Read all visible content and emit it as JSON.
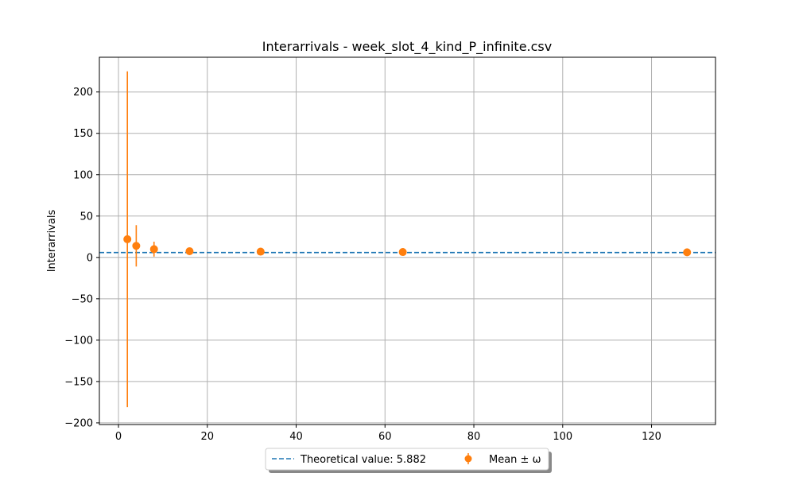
{
  "chart_data": {
    "type": "scatter",
    "title": "Interarrivals - week_slot_4_kind_P_infinite.csv",
    "xlabel": "",
    "ylabel": "Interarrivals",
    "xlim": [
      -4.3,
      134.4
    ],
    "ylim": [
      -202,
      242
    ],
    "xticks": [
      0,
      20,
      40,
      60,
      80,
      100,
      120
    ],
    "yticks": [
      -200,
      -150,
      -100,
      -50,
      0,
      50,
      100,
      150,
      200
    ],
    "grid": true,
    "legend_position": "bottom-center",
    "reference_line": {
      "name": "Theoretical value: 5.882",
      "y": 5.882,
      "color": "#1f77b4",
      "style": "dashed"
    },
    "series": [
      {
        "name": "Mean ± ω",
        "color": "#ff7f0e",
        "points": [
          {
            "x": 2,
            "y": 22,
            "lower": -181,
            "upper": 225
          },
          {
            "x": 4,
            "y": 14,
            "lower": -11,
            "upper": 39
          },
          {
            "x": 8,
            "y": 10,
            "lower": 1,
            "upper": 19
          },
          {
            "x": 16,
            "y": 7.5,
            "lower": 5,
            "upper": 10
          },
          {
            "x": 32,
            "y": 7,
            "lower": 5.5,
            "upper": 8.5
          },
          {
            "x": 64,
            "y": 6.5,
            "lower": 5.5,
            "upper": 7.5
          },
          {
            "x": 128,
            "y": 6.2,
            "lower": 5.5,
            "upper": 7
          }
        ]
      }
    ]
  }
}
